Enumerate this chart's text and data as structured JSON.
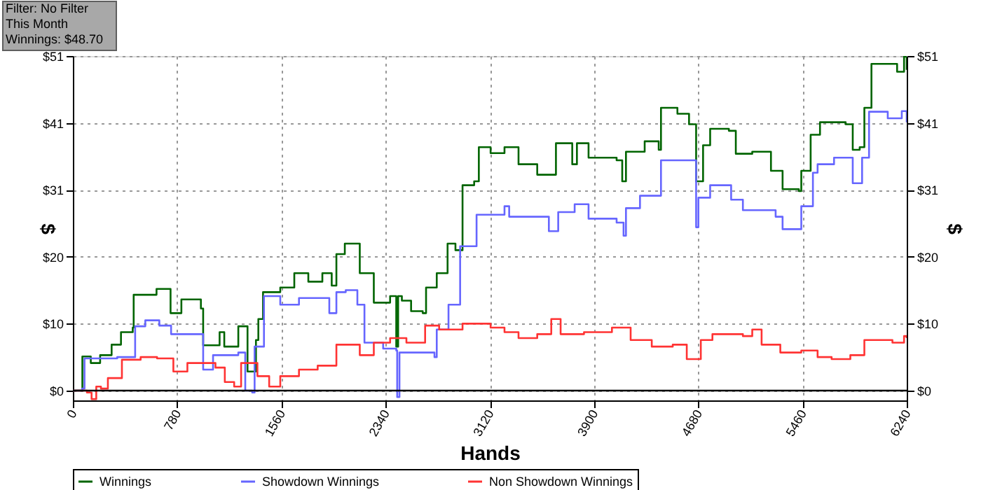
{
  "chart_data": {
    "type": "step",
    "xlabel": "Hands",
    "ylabel": "$",
    "y2label": "$",
    "annotations": [
      "Filter: No Filter",
      "This Month",
      "Winnings: $48.70"
    ],
    "xlim": [
      0,
      6240
    ],
    "xticks": [
      0,
      780,
      1560,
      2340,
      3120,
      3900,
      4680,
      5460,
      6240
    ],
    "ylim": [
      -1.5,
      51
    ],
    "yticks": [
      {
        "value": 0,
        "label": "$0"
      },
      {
        "value": 10.2,
        "label": "$10"
      },
      {
        "value": 20.4,
        "label": "$20"
      },
      {
        "value": 30.6,
        "label": "$31"
      },
      {
        "value": 40.8,
        "label": "$41"
      },
      {
        "value": 51,
        "label": "$51"
      }
    ],
    "y2lim": [
      -1.5,
      51
    ],
    "y2ticks": [
      {
        "value": 0,
        "label": "$0"
      },
      {
        "value": 10.2,
        "label": "$10"
      },
      {
        "value": 20.4,
        "label": "$20"
      },
      {
        "value": 30.6,
        "label": "$31"
      },
      {
        "value": 40.8,
        "label": "$41"
      },
      {
        "value": 51,
        "label": "$51"
      }
    ],
    "grid": true,
    "legend": "bottom",
    "marker": "none",
    "line_style": "solid",
    "ref_lines": [
      {
        "axis": "y",
        "value": 0,
        "color": "#000000"
      }
    ],
    "series": [
      {
        "name": "Winnings",
        "color": "#006400",
        "x": [
          0,
          66,
          71,
          134,
          204,
          290,
          360,
          448,
          455,
          626,
          731,
          812,
          958,
          975,
          1098,
          1133,
          1238,
          1307,
          1370,
          1388,
          1423,
          1552,
          1657,
          1762,
          1867,
          1937,
          1972,
          2035,
          2147,
          2252,
          2374,
          2420,
          2434,
          2462,
          2531,
          2618,
          2643,
          2723,
          2804,
          2863,
          2916,
          3003,
          3038,
          3126,
          3230,
          3335,
          3475,
          3615,
          3737,
          3772,
          3859,
          4069,
          4111,
          4139,
          4279,
          4384,
          4401,
          4524,
          4611,
          4664,
          4716,
          4769,
          4909,
          4961,
          5084,
          5224,
          5311,
          5433,
          5451,
          5521,
          5591,
          5783,
          5836,
          5888,
          5923,
          5976,
          6168,
          6220,
          6240
        ],
        "values": [
          0,
          0,
          5.2,
          4.2,
          5.4,
          7.0,
          8.9,
          9.6,
          14.6,
          15.5,
          11.8,
          13.9,
          12.5,
          6.9,
          8.9,
          6.7,
          9.8,
          2.9,
          7.7,
          10.9,
          15.0,
          15.7,
          17.9,
          16.6,
          17.9,
          16.0,
          20.8,
          22.4,
          17.9,
          13.4,
          14.4,
          6.7,
          14.4,
          13.7,
          12.1,
          11.8,
          15.7,
          17.9,
          22.4,
          21.4,
          31.3,
          31.9,
          37.1,
          36.2,
          37.1,
          34.5,
          32.9,
          37.7,
          34.5,
          37.7,
          35.5,
          35.1,
          31.9,
          36.4,
          38.0,
          36.7,
          43.1,
          42.2,
          40.6,
          31.9,
          37.4,
          39.9,
          39.6,
          36.1,
          36.4,
          33.5,
          30.7,
          30.4,
          33.5,
          39.0,
          40.9,
          40.6,
          36.7,
          37.1,
          43.1,
          49.8,
          48.6,
          50.9,
          48.9
        ]
      },
      {
        "name": "Showdown Winnings",
        "color": "#6666ff",
        "x": [
          0,
          70,
          87,
          332,
          455,
          466,
          542,
          647,
          735,
          875,
          975,
          1049,
          1238,
          1290,
          1342,
          1360,
          1412,
          1430,
          1552,
          1692,
          1884,
          1919,
          1972,
          2042,
          2129,
          2182,
          2287,
          2322,
          2420,
          2427,
          2444,
          2706,
          2723,
          2811,
          2898,
          3003,
          3021,
          3126,
          3230,
          3265,
          3475,
          3562,
          3632,
          3755,
          3859,
          4069,
          4121,
          4139,
          4244,
          4401,
          4629,
          4664,
          4681,
          4769,
          4926,
          5014,
          5154,
          5259,
          5311,
          5433,
          5451,
          5538,
          5573,
          5696,
          5818,
          5836,
          5906,
          5958,
          6098,
          6203,
          6240
        ],
        "values": [
          0,
          0.3,
          4.9,
          5.1,
          5.1,
          9.8,
          10.7,
          9.9,
          8.6,
          8.6,
          3.2,
          5.4,
          5.8,
          0,
          -0.3,
          6.7,
          6.7,
          14.4,
          13.1,
          14.1,
          14.1,
          11.8,
          15.0,
          15.3,
          13.1,
          7.3,
          7.3,
          6.4,
          6.1,
          -1.0,
          5.8,
          5.1,
          9.3,
          13.1,
          22.0,
          22.0,
          26.8,
          26.8,
          28.1,
          26.5,
          26.5,
          24.3,
          27.2,
          28.4,
          26.2,
          25.6,
          23.6,
          27.8,
          29.7,
          35.1,
          35.1,
          24.9,
          29.4,
          31.3,
          29.1,
          27.5,
          27.5,
          26.5,
          24.6,
          24.6,
          28.1,
          33.2,
          34.5,
          35.5,
          35.5,
          31.6,
          35.5,
          42.5,
          41.5,
          42.6,
          40.9
        ]
      },
      {
        "name": "Non Showdown Winnings",
        "color": "#ff3333",
        "x": [
          0,
          105,
          140,
          175,
          210,
          262,
          367,
          507,
          630,
          752,
          857,
          962,
          1067,
          1137,
          1207,
          1259,
          1381,
          1469,
          1552,
          1692,
          1832,
          1972,
          2147,
          2252,
          2374,
          2496,
          2636,
          2741,
          2916,
          3126,
          3230,
          3335,
          3475,
          3580,
          3650,
          3825,
          4034,
          4174,
          4332,
          4489,
          4594,
          4699,
          4786,
          5014,
          5084,
          5154,
          5294,
          5451,
          5573,
          5678,
          5818,
          5923,
          6133,
          6220,
          6240
        ],
        "values": [
          0,
          -0.3,
          -1.3,
          0.6,
          0.3,
          1.9,
          4.7,
          5.1,
          4.9,
          2.9,
          4.2,
          4.2,
          3.5,
          1.3,
          0.6,
          4.2,
          2.2,
          0.6,
          2.2,
          3.2,
          3.8,
          7.0,
          5.4,
          7.3,
          8.0,
          7.3,
          9.9,
          9.3,
          10.2,
          9.6,
          8.9,
          8.0,
          8.6,
          10.9,
          8.6,
          8.9,
          9.6,
          7.7,
          6.7,
          7.0,
          4.8,
          7.7,
          8.6,
          8.3,
          9.3,
          7.0,
          5.8,
          6.1,
          5.1,
          4.8,
          5.4,
          7.7,
          7.3,
          8.3,
          8.0
        ]
      }
    ]
  }
}
